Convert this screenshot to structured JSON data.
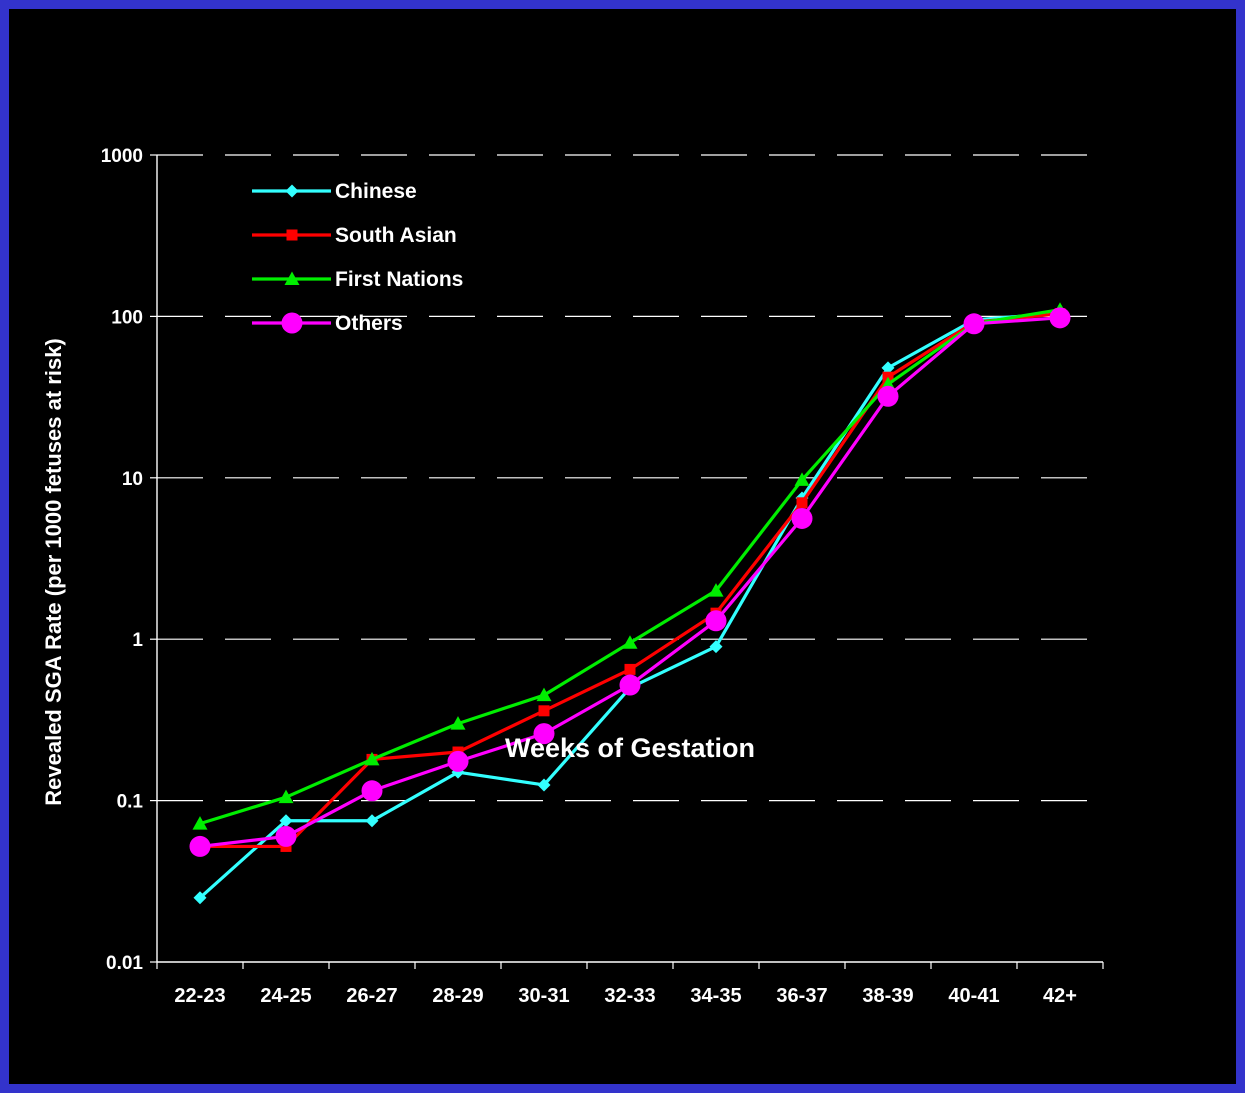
{
  "chart_data": {
    "type": "line",
    "title": "",
    "xlabel": "Weeks of Gestation",
    "ylabel": "Revealed SGA Rate  (per 1000 fetuses at risk)",
    "yscale": "log",
    "ylim": [
      0.01,
      1000
    ],
    "y_ticks": [
      0.01,
      0.1,
      1,
      10,
      100,
      1000
    ],
    "y_tick_labels": [
      "0.01",
      "0.1",
      "1",
      "10",
      "100",
      "1000"
    ],
    "categories": [
      "22-23",
      "24-25",
      "26-27",
      "28-29",
      "30-31",
      "32-33",
      "34-35",
      "36-37",
      "38-39",
      "40-41",
      "42+"
    ],
    "grid": "horizontal dashed",
    "legend_position": "top-left",
    "background_color": "#000000",
    "series": [
      {
        "name": "Chinese",
        "color": "#33ffff",
        "marker": "diamond",
        "values": [
          0.025,
          0.075,
          0.075,
          0.15,
          0.125,
          0.5,
          0.9,
          7.5,
          48,
          95,
          105
        ]
      },
      {
        "name": "South Asian",
        "color": "#ff0000",
        "marker": "square",
        "values": [
          0.052,
          0.052,
          0.18,
          0.2,
          0.36,
          0.65,
          1.45,
          7,
          42,
          92,
          104
        ]
      },
      {
        "name": "First Nations",
        "color": "#00ee00",
        "marker": "triangle",
        "values": [
          0.072,
          0.105,
          0.18,
          0.3,
          0.45,
          0.95,
          2,
          9.7,
          38,
          90,
          110
        ]
      },
      {
        "name": "Others",
        "color": "#ff00ff",
        "marker": "circle",
        "values": [
          0.052,
          0.06,
          0.115,
          0.175,
          0.26,
          0.52,
          1.3,
          5.6,
          32,
          90,
          98
        ]
      }
    ]
  }
}
